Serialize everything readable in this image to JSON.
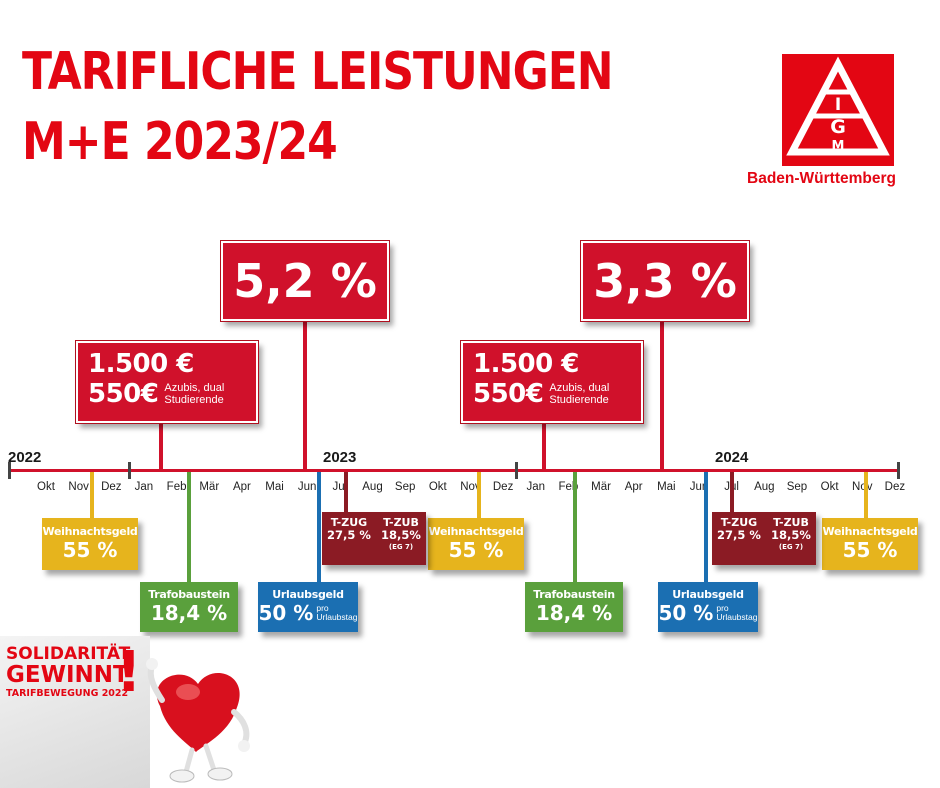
{
  "title": {
    "line1": "TARIFLICHE LEISTUNGEN",
    "line2": "M+E 2023/24"
  },
  "logo": {
    "letters": [
      "I",
      "G",
      "M"
    ],
    "region": "Baden-Württemberg"
  },
  "timeline": {
    "years": [
      "2022",
      "2023",
      "2024"
    ],
    "months": [
      "Okt",
      "Nov",
      "Dez",
      "Jan",
      "Feb",
      "Mär",
      "Apr",
      "Mai",
      "Jun",
      "Jul",
      "Aug",
      "Sep",
      "Okt",
      "Nov",
      "Dez",
      "Jan",
      "Feb",
      "Mär",
      "Apr",
      "Mai",
      "Jun",
      "Jul",
      "Aug",
      "Sep",
      "Okt",
      "Nov",
      "Dez"
    ]
  },
  "raises": [
    {
      "value": "5,2 %",
      "color": "#d0112b"
    },
    {
      "value": "3,3 %",
      "color": "#d0112b"
    }
  ],
  "bonuses": [
    {
      "amount1": "1.500 €",
      "amount2": "550€",
      "note_line1": "Azubis, dual",
      "note_line2": "Studierende"
    },
    {
      "amount1": "1.500 €",
      "amount2": "550€",
      "note_line1": "Azubis, dual",
      "note_line2": "Studierende"
    }
  ],
  "weihnachtsgeld": [
    {
      "label": "Weihnachtsgeld",
      "value": "55 %",
      "color": "#e6b41d"
    },
    {
      "label": "Weihnachtsgeld",
      "value": "55 %",
      "color": "#e6b41d"
    },
    {
      "label": "Weihnachtsgeld",
      "value": "55 %",
      "color": "#e6b41d"
    }
  ],
  "trafobaustein": [
    {
      "label": "Trafobaustein",
      "value": "18,4 %",
      "color": "#5aa03c"
    },
    {
      "label": "Trafobaustein",
      "value": "18,4 %",
      "color": "#5aa03c"
    }
  ],
  "urlaubsgeld": [
    {
      "label": "Urlaubsgeld",
      "value": "50 %",
      "note_line1": "pro",
      "note_line2": "Urlaubstag",
      "color": "#1b6fb2"
    },
    {
      "label": "Urlaubsgeld",
      "value": "50 %",
      "note_line1": "pro",
      "note_line2": "Urlaubstag",
      "color": "#1b6fb2"
    }
  ],
  "tzug": [
    {
      "a_label": "T-ZUG",
      "a_value": "27,5 %",
      "b_label": "T-ZUB",
      "b_value": "18,5%",
      "b_note": "(EG 7)",
      "color": "#8b1b24"
    },
    {
      "a_label": "T-ZUG",
      "a_value": "27,5 %",
      "b_label": "T-ZUB",
      "b_value": "18,5%",
      "b_note": "(EG 7)",
      "color": "#8b1b24"
    }
  ],
  "badge": {
    "line1": "SOLIDARITÄT",
    "line2": "GEWINNT",
    "line3": "TARIFBEWEGUNG 2022",
    "mark": "!"
  }
}
